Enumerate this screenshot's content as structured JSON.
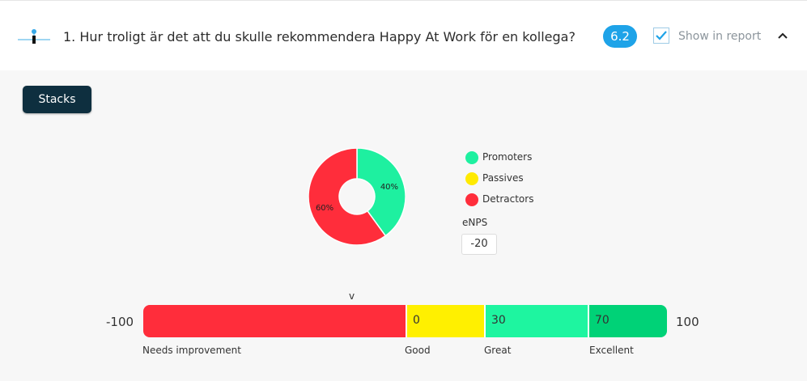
{
  "question": {
    "title": "1. Hur troligt är det att du skulle rekommendera Happy At Work för en kollega?",
    "score": "6.2",
    "show_in_report_label": "Show in report",
    "show_in_report_checked": true
  },
  "toolbar": {
    "stacks_label": "Stacks"
  },
  "icons": {
    "question": "slider-icon",
    "checkbox": "checkmark-icon",
    "collapse": "chevron-up-icon"
  },
  "chart_data": {
    "type": "pie",
    "labels": [
      "Promoters",
      "Passives",
      "Detractors"
    ],
    "values": [
      40,
      0,
      60
    ],
    "colors": [
      "#1ef0a0",
      "#ffea00",
      "#ff2d3b"
    ],
    "slice_labels": [
      "40%",
      "",
      "60%"
    ],
    "donut": true
  },
  "legend": {
    "items": [
      {
        "label": "Promoters",
        "color": "#1ef0a0"
      },
      {
        "label": "Passives",
        "color": "#ffea00"
      },
      {
        "label": "Detractors",
        "color": "#ff2d3b"
      }
    ]
  },
  "enps": {
    "label": "eNPS",
    "value": "-20"
  },
  "scale": {
    "min_label": "-100",
    "max_label": "100",
    "marker": "v",
    "segments": [
      {
        "value": "",
        "label": "Needs improvement",
        "color": "#ff2d3b"
      },
      {
        "value": "0",
        "label": "Good",
        "color": "#fff000"
      },
      {
        "value": "30",
        "label": "Great",
        "color": "#1ef5a0"
      },
      {
        "value": "70",
        "label": "Excellent",
        "color": "#00d277"
      }
    ]
  }
}
